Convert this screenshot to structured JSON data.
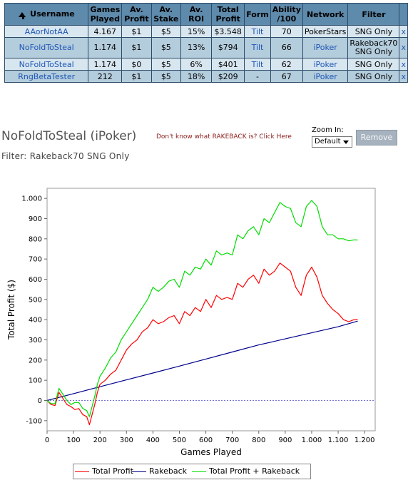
{
  "table": {
    "headers": [
      {
        "key": "username",
        "label": "Username"
      },
      {
        "key": "games",
        "label": "Games Played"
      },
      {
        "key": "avprofit",
        "label": "Av. Profit"
      },
      {
        "key": "avstake",
        "label": "Av. Stake"
      },
      {
        "key": "avroi",
        "label": "Av. ROI"
      },
      {
        "key": "totalprofit",
        "label": "Total Profit"
      },
      {
        "key": "form",
        "label": "Form"
      },
      {
        "key": "ability",
        "label": "Ability /100"
      },
      {
        "key": "network",
        "label": "Network"
      },
      {
        "key": "filter",
        "label": "Filter"
      }
    ],
    "rows": [
      {
        "username": "AAorNotAA",
        "games": "4.167",
        "avprofit": "$1",
        "avstake": "$5",
        "avroi": "15%",
        "totalprofit": "$3.548",
        "form": "Tilt",
        "ability": "70",
        "network": "PokerStars",
        "filter": "SNG Only",
        "remove": "x"
      },
      {
        "username": "NoFoldToSteal",
        "games": "1.174",
        "avprofit": "$1",
        "avstake": "$5",
        "avroi": "13%",
        "totalprofit": "$794",
        "form": "Tilt",
        "ability": "66",
        "network": "iPoker",
        "filter": "Rakeback70 SNG Only",
        "remove": "x"
      },
      {
        "username": "NoFoldToSteal",
        "games": "1.174",
        "avprofit": "$0",
        "avstake": "$5",
        "avroi": "6%",
        "totalprofit": "$401",
        "form": "Tilt",
        "ability": "62",
        "network": "iPoker",
        "filter": "SNG Only",
        "remove": "x"
      },
      {
        "username": "RngBetaTester",
        "games": "212",
        "avprofit": "$1",
        "avstake": "$5",
        "avroi": "18%",
        "totalprofit": "$209",
        "form": "-",
        "ability": "67",
        "network": "iPoker",
        "filter": "SNG Only",
        "remove": "x"
      }
    ]
  },
  "player": {
    "title": "NoFoldToSteal (iPoker)",
    "filter": "Filter: Rakeback70 SNG Only",
    "rakeback_link": "Don't know what RAKEBACK is? Click Here"
  },
  "zoom": {
    "label": "Zoom In:",
    "value": "Default"
  },
  "remove_label": "Remove",
  "chart_data": {
    "type": "line",
    "xlabel": "Games Played",
    "ylabel": "Total Profit ($)",
    "xlim": [
      0,
      1240
    ],
    "ylim": [
      -150,
      1050
    ],
    "xticks": [
      0,
      100,
      200,
      300,
      400,
      500,
      600,
      700,
      800,
      900,
      1000,
      1100,
      1200
    ],
    "xtick_labels": [
      "0",
      "100",
      "200",
      "300",
      "400",
      "500",
      "600",
      "700",
      "800",
      "900",
      "1.000",
      "1.100",
      "1.200"
    ],
    "yticks": [
      -100,
      0,
      100,
      200,
      300,
      400,
      500,
      600,
      700,
      800,
      900,
      1000
    ],
    "ytick_labels": [
      "-100",
      "0",
      "100",
      "200",
      "300",
      "400",
      "500",
      "600",
      "700",
      "800",
      "900",
      "1.000"
    ],
    "zero_line": true,
    "legend_position": "bottom",
    "series": [
      {
        "name": "Total Profit",
        "color": "#ff0000",
        "x": [
          0,
          15,
          30,
          45,
          60,
          75,
          90,
          105,
          120,
          135,
          150,
          160,
          170,
          180,
          190,
          200,
          220,
          240,
          260,
          280,
          300,
          320,
          340,
          360,
          380,
          400,
          420,
          440,
          460,
          480,
          500,
          520,
          540,
          560,
          580,
          600,
          620,
          640,
          660,
          680,
          700,
          720,
          740,
          760,
          780,
          800,
          820,
          840,
          860,
          880,
          900,
          920,
          940,
          960,
          980,
          1000,
          1020,
          1040,
          1060,
          1080,
          1100,
          1120,
          1140,
          1160,
          1174
        ],
        "y": [
          0,
          -20,
          -25,
          40,
          10,
          -20,
          -30,
          -45,
          -40,
          -70,
          -80,
          -120,
          -70,
          -20,
          40,
          80,
          100,
          130,
          150,
          200,
          250,
          280,
          300,
          340,
          360,
          400,
          380,
          390,
          410,
          420,
          380,
          440,
          420,
          460,
          440,
          500,
          460,
          520,
          500,
          510,
          500,
          580,
          560,
          600,
          620,
          580,
          650,
          620,
          640,
          680,
          660,
          640,
          560,
          520,
          620,
          660,
          610,
          520,
          480,
          450,
          430,
          400,
          390,
          400,
          401
        ]
      },
      {
        "name": "Rakeback",
        "color": "#00008b",
        "x": [
          0,
          100,
          200,
          300,
          400,
          500,
          600,
          700,
          800,
          900,
          1000,
          1100,
          1174
        ],
        "y": [
          0,
          34,
          68,
          102,
          136,
          170,
          205,
          240,
          275,
          305,
          335,
          365,
          393
        ]
      },
      {
        "name": "Total Profit + Rakeback",
        "color": "#00dd00",
        "x": [
          0,
          15,
          30,
          45,
          60,
          75,
          90,
          105,
          120,
          135,
          150,
          160,
          170,
          180,
          190,
          200,
          220,
          240,
          260,
          280,
          300,
          320,
          340,
          360,
          380,
          400,
          420,
          440,
          460,
          480,
          500,
          520,
          540,
          560,
          580,
          600,
          620,
          640,
          660,
          680,
          700,
          720,
          740,
          760,
          780,
          800,
          820,
          840,
          860,
          880,
          900,
          920,
          940,
          960,
          980,
          1000,
          1020,
          1040,
          1060,
          1080,
          1100,
          1120,
          1140,
          1160,
          1174
        ],
        "y": [
          0,
          -15,
          -15,
          60,
          30,
          0,
          -20,
          -10,
          -10,
          -40,
          -50,
          -80,
          -30,
          20,
          80,
          120,
          160,
          210,
          240,
          300,
          340,
          380,
          420,
          460,
          500,
          560,
          540,
          560,
          590,
          600,
          560,
          640,
          620,
          660,
          650,
          700,
          670,
          740,
          720,
          730,
          720,
          820,
          800,
          840,
          860,
          820,
          900,
          880,
          930,
          980,
          960,
          950,
          880,
          860,
          960,
          990,
          960,
          860,
          820,
          820,
          800,
          800,
          790,
          795,
          794
        ]
      }
    ]
  }
}
